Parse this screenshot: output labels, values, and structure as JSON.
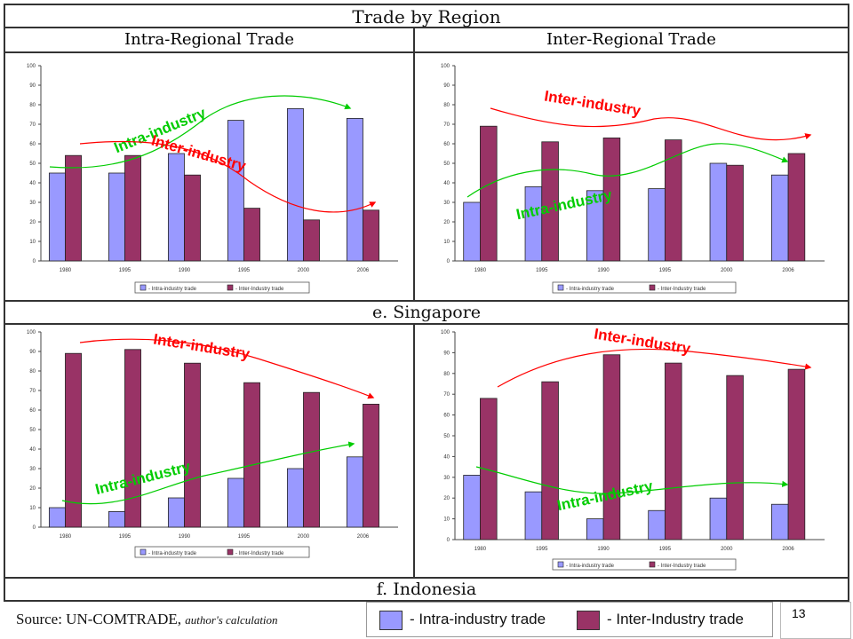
{
  "slide": {
    "title": "Trade by Region",
    "left_header": "Intra-Regional Trade",
    "right_header": "Inter-Regional Trade",
    "section_e": "e. Singapore",
    "section_f": "f. Indonesia",
    "source_prefix": "Source: UN-COMTRADE,",
    "source_italic": "author's calculation",
    "page_number": "13",
    "legend": {
      "intra": "- Intra-industry trade",
      "inter": "- Inter-Industry trade"
    },
    "colors": {
      "intra": "#9999ff",
      "inter": "#993366",
      "intra_arrow": "#00cc00",
      "inter_arrow": "#ff0000"
    }
  },
  "chart_data": [
    {
      "type": "bar",
      "region": "intra-regional",
      "country": "Singapore",
      "categories": [
        "1980",
        "1995",
        "1990",
        "1995",
        "2000",
        "2006"
      ],
      "series": [
        {
          "name": "- Intra-industry trade",
          "values": [
            45,
            45,
            55,
            72,
            78,
            73
          ]
        },
        {
          "name": "- Inter-Industry trade",
          "values": [
            54,
            54,
            44,
            27,
            21,
            26
          ]
        }
      ],
      "ylim": [
        0,
        100
      ],
      "yticks": [
        "0",
        "10",
        "20",
        "30",
        "40",
        "50",
        "60",
        "70",
        "80",
        "90",
        "100"
      ],
      "legend": "bottom",
      "annotations": [
        "Intra-industry",
        "Inter-industry"
      ]
    },
    {
      "type": "bar",
      "region": "inter-regional",
      "country": "Singapore",
      "categories": [
        "1980",
        "1995",
        "1990",
        "1995",
        "2000",
        "2006"
      ],
      "series": [
        {
          "name": "- Intra-industry trade",
          "values": [
            30,
            38,
            36,
            37,
            50,
            44
          ]
        },
        {
          "name": "- Inter-Industry trade",
          "values": [
            69,
            61,
            63,
            62,
            49,
            55
          ]
        }
      ],
      "ylim": [
        0,
        100
      ],
      "yticks": [
        "0",
        "10",
        "20",
        "30",
        "40",
        "50",
        "60",
        "70",
        "80",
        "90",
        "100"
      ],
      "legend": "bottom",
      "annotations": [
        "Inter-industry",
        "Intra-industry"
      ]
    },
    {
      "type": "bar",
      "region": "intra-regional",
      "country": "Indonesia",
      "categories": [
        "1980",
        "1995",
        "1990",
        "1995",
        "2000",
        "2006"
      ],
      "series": [
        {
          "name": "- Intra-industry trade",
          "values": [
            10,
            8,
            15,
            25,
            30,
            36
          ]
        },
        {
          "name": "- Inter-Industry trade",
          "values": [
            89,
            91,
            84,
            74,
            69,
            63
          ]
        }
      ],
      "ylim": [
        0,
        100
      ],
      "yticks": [
        "0",
        "10",
        "20",
        "30",
        "40",
        "50",
        "60",
        "70",
        "80",
        "90",
        "100"
      ],
      "legend": "bottom",
      "annotations": [
        "Inter-industry",
        "Intra-industry"
      ]
    },
    {
      "type": "bar",
      "region": "inter-regional",
      "country": "Indonesia",
      "categories": [
        "1980",
        "1995",
        "1990",
        "1995",
        "2000",
        "2006"
      ],
      "series": [
        {
          "name": "- Intra-industry trade",
          "values": [
            31,
            23,
            10,
            14,
            20,
            17
          ]
        },
        {
          "name": "- Inter-Industry trade",
          "values": [
            68,
            76,
            89,
            85,
            79,
            82
          ]
        }
      ],
      "ylim": [
        0,
        100
      ],
      "yticks": [
        "0",
        "10",
        "20",
        "30",
        "40",
        "50",
        "60",
        "70",
        "80",
        "90",
        "100"
      ],
      "legend": "bottom",
      "annotations": [
        "Inter-industry",
        "Intra-industry"
      ]
    }
  ]
}
